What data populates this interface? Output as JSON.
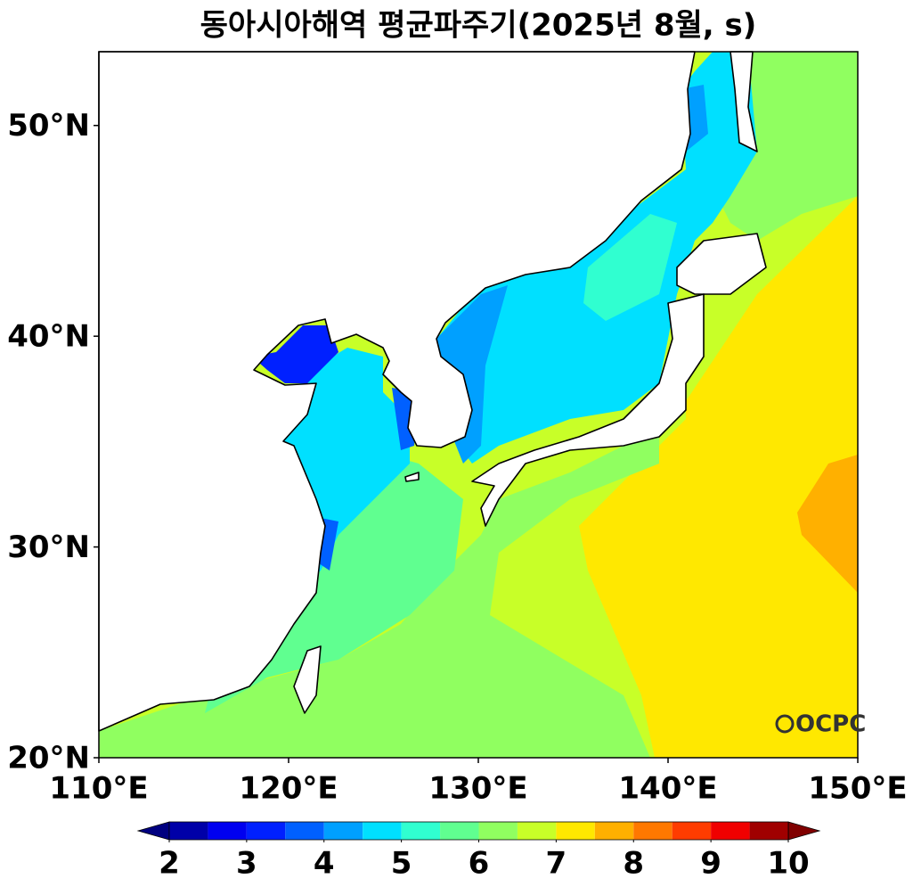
{
  "map": {
    "title": "동아시아해역 평균파주기(2025년 8월, s)",
    "xlim": [
      110,
      150
    ],
    "ylim": [
      20,
      53.5
    ],
    "xticks": [
      {
        "value": 110,
        "label": "110°E"
      },
      {
        "value": 120,
        "label": "120°E"
      },
      {
        "value": 130,
        "label": "130°E"
      },
      {
        "value": 140,
        "label": "140°E"
      },
      {
        "value": 150,
        "label": "150°E"
      }
    ],
    "yticks": [
      {
        "value": 20,
        "label": "20°N"
      },
      {
        "value": 30,
        "label": "30°N"
      },
      {
        "value": 40,
        "label": "40°N"
      },
      {
        "value": 50,
        "label": "50°N"
      }
    ],
    "colorbar": {
      "levels": [
        2,
        2.5,
        3,
        3.5,
        4,
        4.5,
        5,
        5.5,
        6,
        6.5,
        7,
        7.5,
        8,
        8.5,
        9,
        9.5,
        10
      ],
      "colors": [
        "#0000a8",
        "#0000f0",
        "#0020ff",
        "#0060ff",
        "#00a0ff",
        "#00e0ff",
        "#30ffd0",
        "#60ff90",
        "#90ff60",
        "#c8ff28",
        "#ffe800",
        "#ffb000",
        "#ff7800",
        "#ff3c00",
        "#f00000",
        "#a00000"
      ],
      "under_color": "#000080",
      "over_color": "#800000",
      "ticks": [
        2,
        3,
        4,
        5,
        6,
        7,
        8,
        9,
        10
      ]
    },
    "logo": "OCPC"
  }
}
